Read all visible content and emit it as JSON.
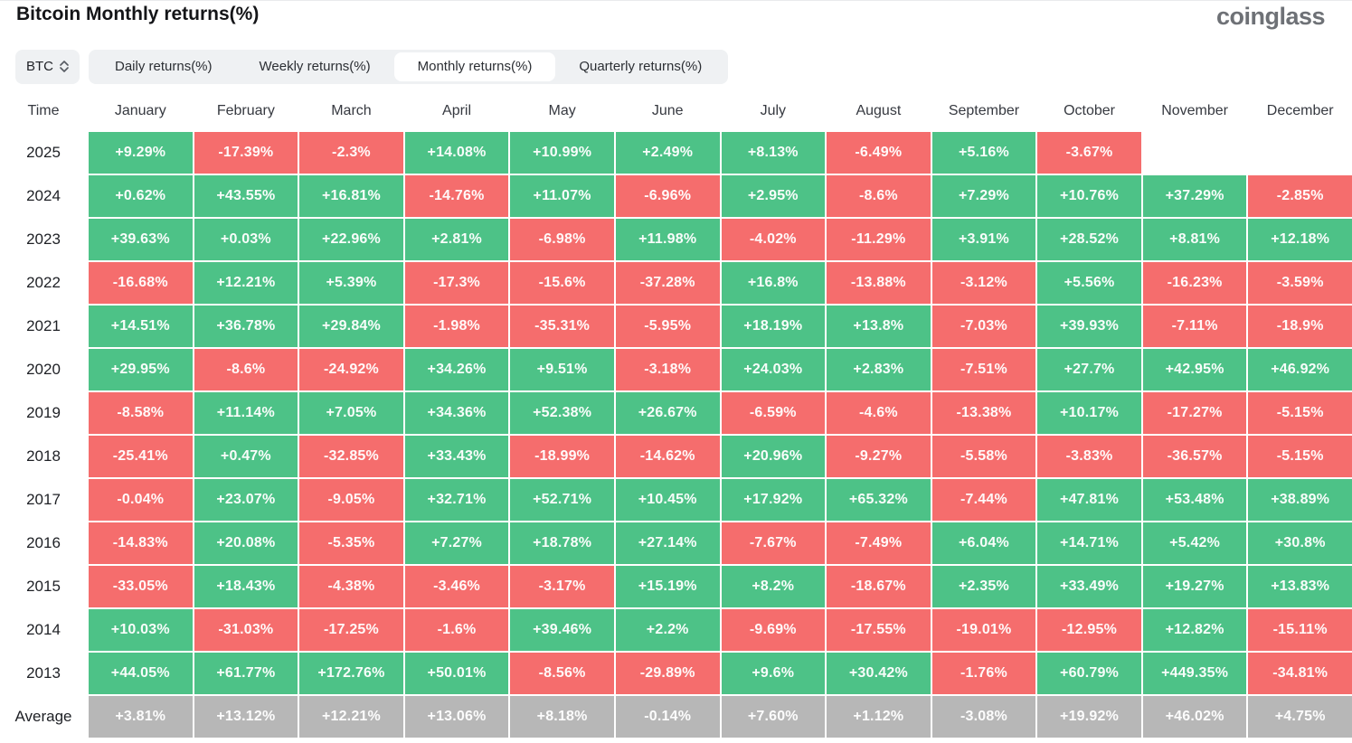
{
  "page": {
    "title": "Bitcoin Monthly returns(%)",
    "logo": "coinglass"
  },
  "controls": {
    "symbol_select": {
      "value": "BTC"
    },
    "tabs": [
      {
        "label": "Daily returns(%)",
        "active": false
      },
      {
        "label": "Weekly returns(%)",
        "active": false
      },
      {
        "label": "Monthly returns(%)",
        "active": true
      },
      {
        "label": "Quarterly returns(%)",
        "active": false
      }
    ]
  },
  "chart_data": {
    "type": "heatmap",
    "title": "Bitcoin Monthly returns(%)",
    "legend_position": "none",
    "colors": {
      "positive": "#4dc287",
      "negative": "#f56d6d",
      "average": "#b7b7b7"
    },
    "columns": [
      "Time",
      "January",
      "February",
      "March",
      "April",
      "May",
      "June",
      "July",
      "August",
      "September",
      "October",
      "November",
      "December"
    ],
    "rows": [
      {
        "label": "2025",
        "values": [
          "+9.29%",
          "-17.39%",
          "-2.3%",
          "+14.08%",
          "+10.99%",
          "+2.49%",
          "+8.13%",
          "-6.49%",
          "+5.16%",
          "-3.67%",
          null,
          null
        ]
      },
      {
        "label": "2024",
        "values": [
          "+0.62%",
          "+43.55%",
          "+16.81%",
          "-14.76%",
          "+11.07%",
          "-6.96%",
          "+2.95%",
          "-8.6%",
          "+7.29%",
          "+10.76%",
          "+37.29%",
          "-2.85%"
        ]
      },
      {
        "label": "2023",
        "values": [
          "+39.63%",
          "+0.03%",
          "+22.96%",
          "+2.81%",
          "-6.98%",
          "+11.98%",
          "-4.02%",
          "-11.29%",
          "+3.91%",
          "+28.52%",
          "+8.81%",
          "+12.18%"
        ]
      },
      {
        "label": "2022",
        "values": [
          "-16.68%",
          "+12.21%",
          "+5.39%",
          "-17.3%",
          "-15.6%",
          "-37.28%",
          "+16.8%",
          "-13.88%",
          "-3.12%",
          "+5.56%",
          "-16.23%",
          "-3.59%"
        ]
      },
      {
        "label": "2021",
        "values": [
          "+14.51%",
          "+36.78%",
          "+29.84%",
          "-1.98%",
          "-35.31%",
          "-5.95%",
          "+18.19%",
          "+13.8%",
          "-7.03%",
          "+39.93%",
          "-7.11%",
          "-18.9%"
        ]
      },
      {
        "label": "2020",
        "values": [
          "+29.95%",
          "-8.6%",
          "-24.92%",
          "+34.26%",
          "+9.51%",
          "-3.18%",
          "+24.03%",
          "+2.83%",
          "-7.51%",
          "+27.7%",
          "+42.95%",
          "+46.92%"
        ]
      },
      {
        "label": "2019",
        "values": [
          "-8.58%",
          "+11.14%",
          "+7.05%",
          "+34.36%",
          "+52.38%",
          "+26.67%",
          "-6.59%",
          "-4.6%",
          "-13.38%",
          "+10.17%",
          "-17.27%",
          "-5.15%"
        ]
      },
      {
        "label": "2018",
        "values": [
          "-25.41%",
          "+0.47%",
          "-32.85%",
          "+33.43%",
          "-18.99%",
          "-14.62%",
          "+20.96%",
          "-9.27%",
          "-5.58%",
          "-3.83%",
          "-36.57%",
          "-5.15%"
        ]
      },
      {
        "label": "2017",
        "values": [
          "-0.04%",
          "+23.07%",
          "-9.05%",
          "+32.71%",
          "+52.71%",
          "+10.45%",
          "+17.92%",
          "+65.32%",
          "-7.44%",
          "+47.81%",
          "+53.48%",
          "+38.89%"
        ]
      },
      {
        "label": "2016",
        "values": [
          "-14.83%",
          "+20.08%",
          "-5.35%",
          "+7.27%",
          "+18.78%",
          "+27.14%",
          "-7.67%",
          "-7.49%",
          "+6.04%",
          "+14.71%",
          "+5.42%",
          "+30.8%"
        ]
      },
      {
        "label": "2015",
        "values": [
          "-33.05%",
          "+18.43%",
          "-4.38%",
          "-3.46%",
          "-3.17%",
          "+15.19%",
          "+8.2%",
          "-18.67%",
          "+2.35%",
          "+33.49%",
          "+19.27%",
          "+13.83%"
        ]
      },
      {
        "label": "2014",
        "values": [
          "+10.03%",
          "-31.03%",
          "-17.25%",
          "-1.6%",
          "+39.46%",
          "+2.2%",
          "-9.69%",
          "-17.55%",
          "-19.01%",
          "-12.95%",
          "+12.82%",
          "-15.11%"
        ]
      },
      {
        "label": "2013",
        "values": [
          "+44.05%",
          "+61.77%",
          "+172.76%",
          "+50.01%",
          "-8.56%",
          "-29.89%",
          "+9.6%",
          "+30.42%",
          "-1.76%",
          "+60.79%",
          "+449.35%",
          "-34.81%"
        ]
      },
      {
        "label": "Average",
        "values": [
          "+3.81%",
          "+13.12%",
          "+12.21%",
          "+13.06%",
          "+8.18%",
          "-0.14%",
          "+7.60%",
          "+1.12%",
          "-3.08%",
          "+19.92%",
          "+46.02%",
          "+4.75%"
        ],
        "is_average": true
      }
    ]
  }
}
